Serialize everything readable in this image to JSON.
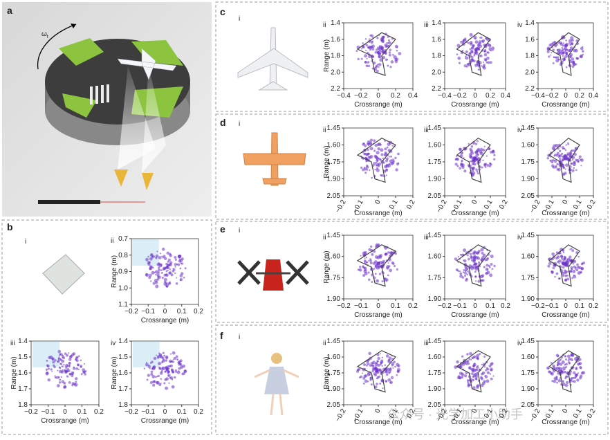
{
  "panels": [
    {
      "label": "a",
      "omega": "ω",
      "omega_sub": "t"
    },
    {
      "label": "b",
      "photo_label": "i",
      "plots": [
        {
          "roman": "ii",
          "xlabel": "Crossrange (m)",
          "ylabel": "Range (m)",
          "xticks": [
            "−0.2",
            "−0.1",
            "0",
            "0.1",
            "0.2"
          ],
          "yticks": [
            "0.7",
            "0.8",
            "0.9",
            "1.0",
            "1.1"
          ]
        },
        {
          "roman": "iii",
          "xlabel": "Crossrange (m)",
          "ylabel": "Range (m)",
          "xticks": [
            "−0.2",
            "−0.1",
            "0",
            "0.1",
            "0.2"
          ],
          "yticks": [
            "1.4",
            "1.5",
            "1.6",
            "1.7",
            "1.8"
          ]
        },
        {
          "roman": "iv",
          "xlabel": "Crossrange (m)",
          "ylabel": "Range (m)",
          "xticks": [
            "−0.2",
            "−0.1",
            "0",
            "0.1",
            "0.2"
          ],
          "yticks": [
            "1.4",
            "1.5",
            "1.6",
            "1.7",
            "1.8"
          ]
        }
      ]
    },
    {
      "label": "c",
      "photo_label": "i",
      "plots": [
        {
          "roman": "ii",
          "xlabel": "Crossrange (m)",
          "ylabel": "Range (m)",
          "xticks": [
            "−0.4",
            "−0.2",
            "0",
            "0.2",
            "0.4"
          ],
          "yticks": [
            "1.4",
            "1.6",
            "1.8",
            "2.0",
            "2.2"
          ]
        },
        {
          "roman": "iii",
          "xlabel": "Crossrange (m)",
          "ylabel": "",
          "xticks": [
            "−0.4",
            "−0.2",
            "0",
            "0.2",
            "0.4"
          ],
          "yticks": [
            "1.4",
            "1.6",
            "1.8",
            "2.0",
            "2.2"
          ]
        },
        {
          "roman": "iv",
          "xlabel": "Crossrange (m)",
          "ylabel": "",
          "xticks": [
            "−0.4",
            "−0.2",
            "0",
            "0.2",
            "0.4"
          ],
          "yticks": [
            "1.4",
            "1.6",
            "1.8",
            "2.0",
            "2.2"
          ]
        }
      ]
    },
    {
      "label": "d",
      "photo_label": "i",
      "plots": [
        {
          "roman": "ii",
          "xlabel": "Crossrange (m)",
          "ylabel": "Range (m)",
          "xticks": [
            "−0.2",
            "−0.1",
            "0",
            "0.1",
            "0.2"
          ],
          "yticks": [
            "1.45",
            "1.60",
            "1.75",
            "1.90",
            "2.05"
          ]
        },
        {
          "roman": "iii",
          "xlabel": "Crossrange (m)",
          "ylabel": "",
          "xticks": [
            "−0.2",
            "−0.1",
            "0",
            "0.1",
            "0.2"
          ],
          "yticks": [
            "1.45",
            "1.60",
            "1.75",
            "1.90",
            "2.05"
          ]
        },
        {
          "roman": "iv",
          "xlabel": "Crossrange (m)",
          "ylabel": "",
          "xticks": [
            "−0.2",
            "−0.1",
            "0",
            "0.1",
            "0.2"
          ],
          "yticks": [
            "1.45",
            "1.60",
            "1.75",
            "1.90",
            "2.05"
          ]
        }
      ]
    },
    {
      "label": "e",
      "photo_label": "i",
      "plots": [
        {
          "roman": "ii",
          "xlabel": "Crossrange (m)",
          "ylabel": "Range (m)",
          "xticks": [
            "−0.2",
            "−0.1",
            "0",
            "0.1",
            "0.2"
          ],
          "yticks": [
            "1.45",
            "1.60",
            "1.75",
            "1.90"
          ]
        },
        {
          "roman": "iii",
          "xlabel": "Crossrange (m)",
          "ylabel": "",
          "xticks": [
            "−0.2",
            "−0.1",
            "0",
            "0.1",
            "0.2"
          ],
          "yticks": [
            "1.45",
            "1.60",
            "1.75",
            "1.90"
          ]
        },
        {
          "roman": "iv",
          "xlabel": "Crossrange (m)",
          "ylabel": "",
          "xticks": [
            "−0.2",
            "−0.1",
            "0",
            "0.1",
            "0.2"
          ],
          "yticks": [
            "1.45",
            "1.60",
            "1.75",
            "1.90"
          ]
        }
      ]
    },
    {
      "label": "f",
      "photo_label": "i",
      "plots": [
        {
          "roman": "ii",
          "xlabel": "Crossrange (m)",
          "ylabel": "Range (m)",
          "xticks": [
            "−0.2",
            "−0.1",
            "0",
            "0.1",
            "0.2"
          ],
          "yticks": [
            "1.45",
            "1.60",
            "1.75",
            "1.90",
            "2.05"
          ]
        },
        {
          "roman": "iii",
          "xlabel": "Crossrange (m)",
          "ylabel": "",
          "xticks": [
            "−0.2",
            "−0.1",
            "0",
            "0.1",
            "0.2"
          ],
          "yticks": [
            "1.45",
            "1.60",
            "1.75",
            "1.90",
            "2.05"
          ]
        },
        {
          "roman": "iv",
          "xlabel": "Crossrange (m)",
          "ylabel": "",
          "xticks": [
            "−0.2",
            "−0.1",
            "0",
            "0.1",
            "0.2"
          ],
          "yticks": [
            "1.45",
            "1.60",
            "1.75",
            "1.90",
            "2.05"
          ]
        }
      ]
    }
  ],
  "watermark": "公众号 · 光学加工小助手"
}
